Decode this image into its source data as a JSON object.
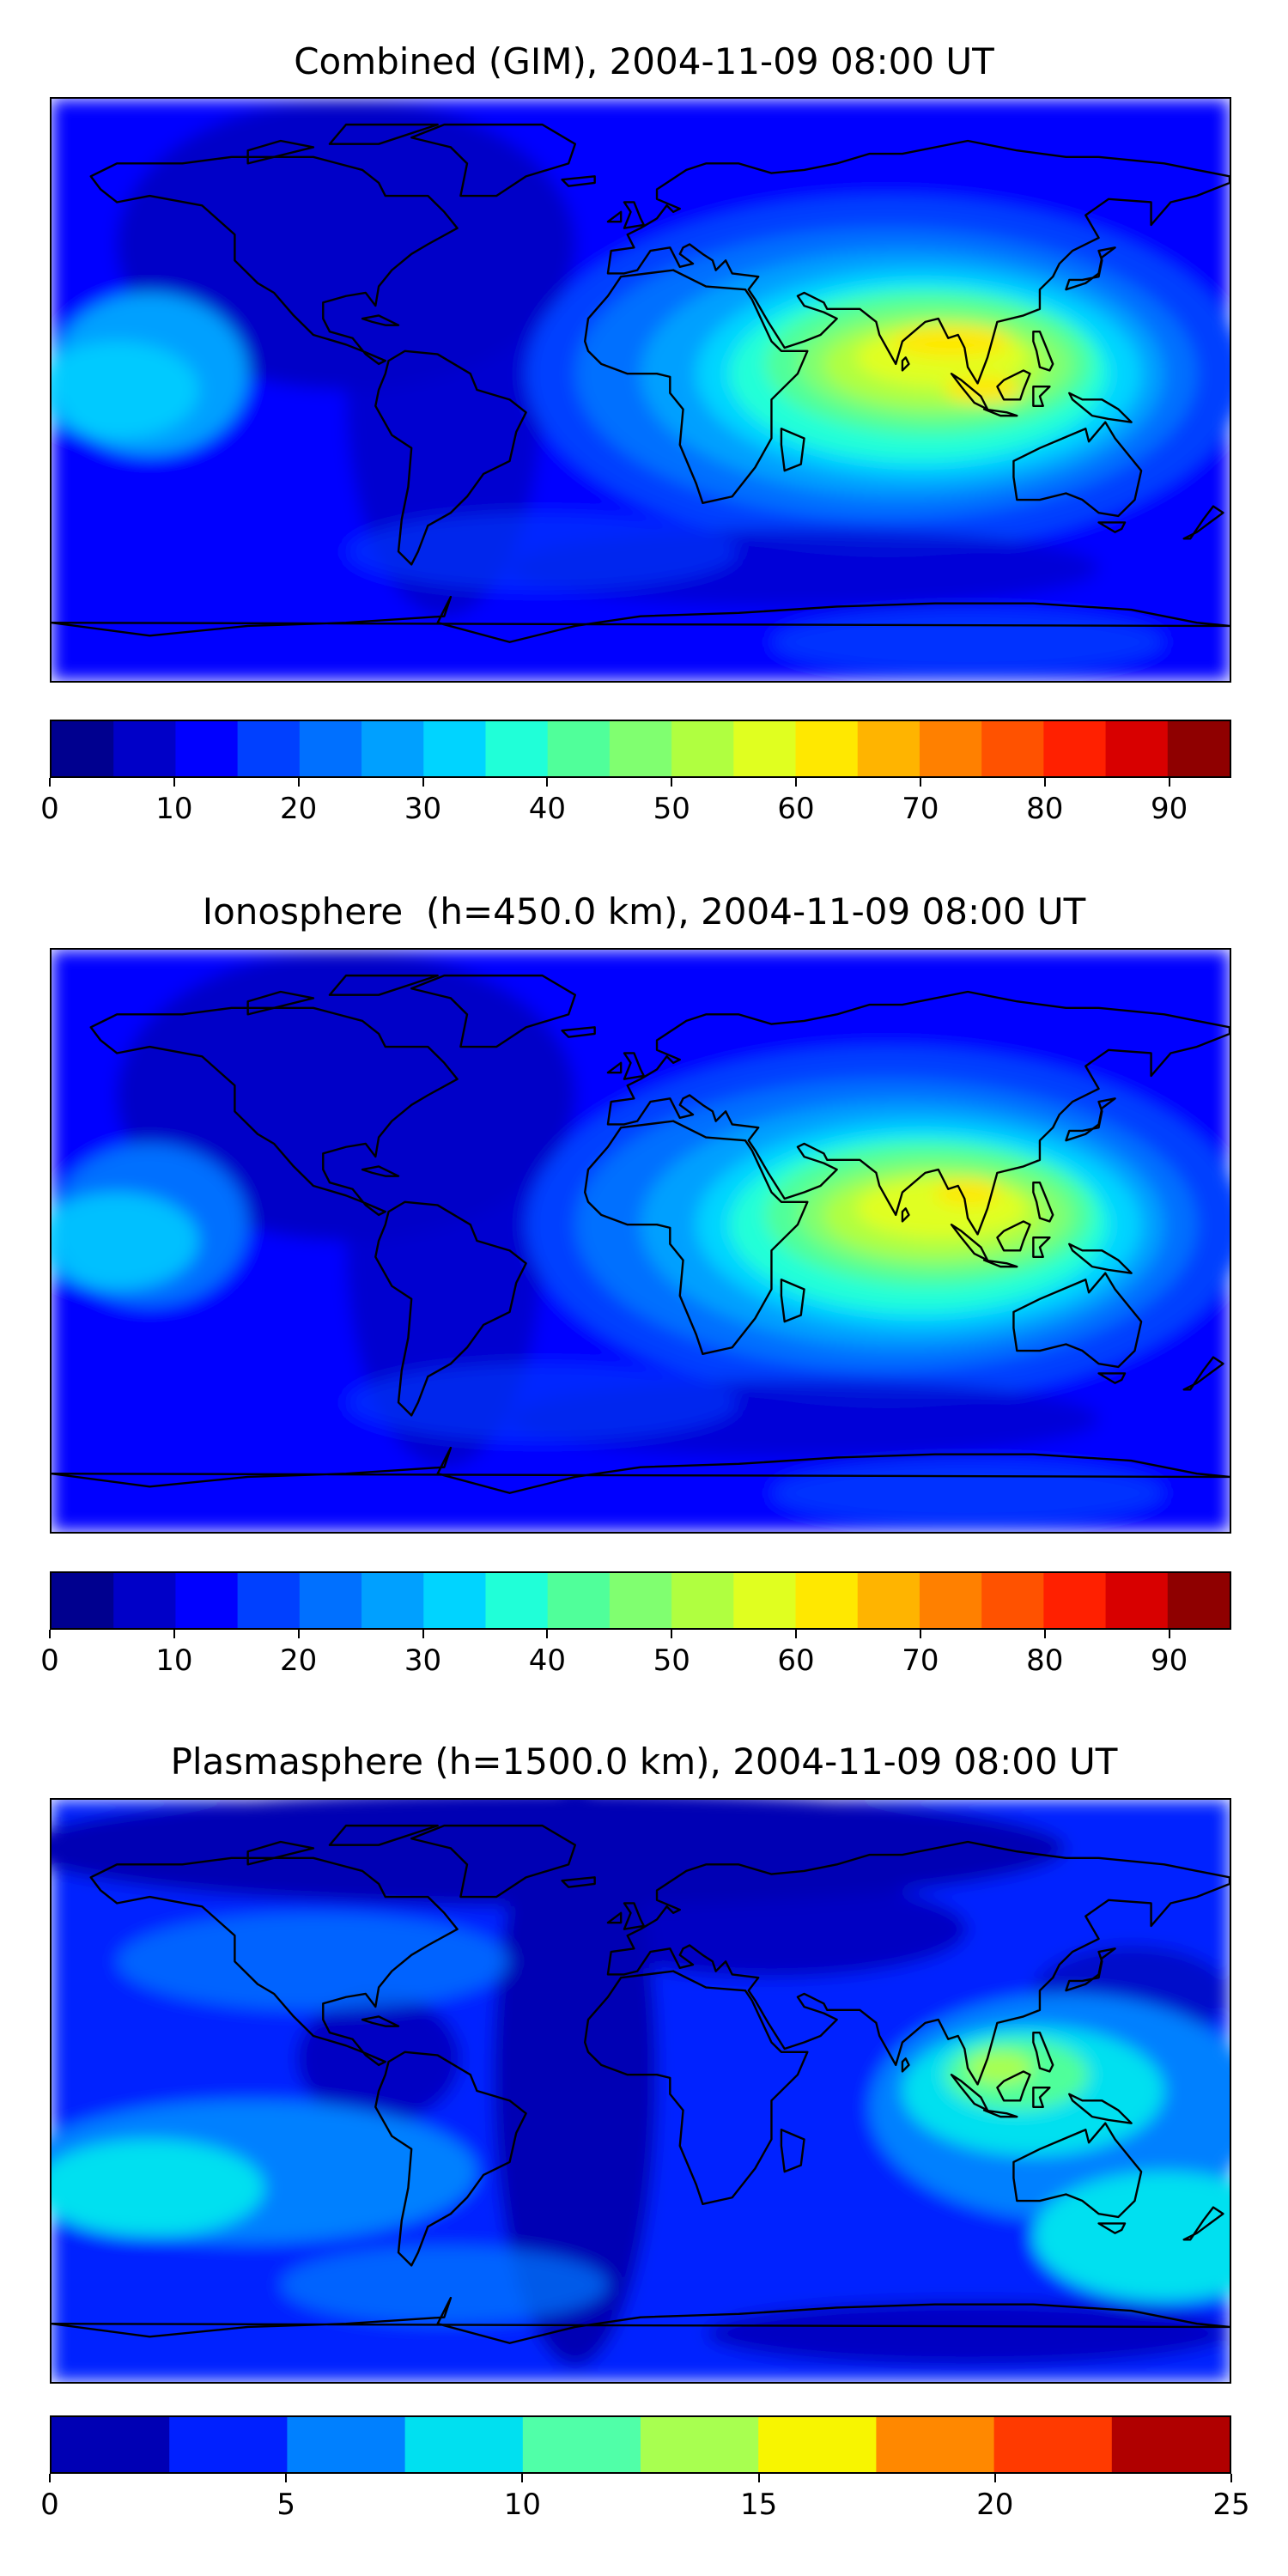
{
  "panels": [
    {
      "title": "Combined (GIM), 2004-11-09 08:00 UT",
      "colorbar": {
        "min": 0,
        "max": 95,
        "step": 5,
        "ticks": [
          "0",
          "10",
          "20",
          "30",
          "40",
          "50",
          "60",
          "70",
          "80",
          "90"
        ],
        "tick_values": [
          0,
          10,
          20,
          30,
          40,
          50,
          60,
          70,
          80,
          90
        ],
        "colors": [
          "#00008f",
          "#0000c8",
          "#0000ff",
          "#0040ff",
          "#0070ff",
          "#00a0ff",
          "#00d4ff",
          "#20ffd8",
          "#50ff9a",
          "#80ff70",
          "#b0ff40",
          "#e0ff20",
          "#ffe800",
          "#ffb400",
          "#ff8000",
          "#ff5200",
          "#ff2000",
          "#d80000",
          "#8f0000"
        ]
      },
      "map_style": "combined"
    },
    {
      "title": "Ionosphere  (h=450.0 km), 2004-11-09 08:00 UT",
      "colorbar": {
        "min": 0,
        "max": 95,
        "step": 5,
        "ticks": [
          "0",
          "10",
          "20",
          "30",
          "40",
          "50",
          "60",
          "70",
          "80",
          "90"
        ],
        "tick_values": [
          0,
          10,
          20,
          30,
          40,
          50,
          60,
          70,
          80,
          90
        ],
        "colors": [
          "#00008f",
          "#0000c8",
          "#0000ff",
          "#0040ff",
          "#0070ff",
          "#00a0ff",
          "#00d4ff",
          "#20ffd8",
          "#50ff9a",
          "#80ff70",
          "#b0ff40",
          "#e0ff20",
          "#ffe800",
          "#ffb400",
          "#ff8000",
          "#ff5200",
          "#ff2000",
          "#d80000",
          "#8f0000"
        ]
      },
      "map_style": "ionosphere"
    },
    {
      "title": "Plasmasphere (h=1500.0 km), 2004-11-09 08:00 UT",
      "colorbar": {
        "min": 0,
        "max": 25,
        "step": 2.5,
        "ticks": [
          "0",
          "5",
          "10",
          "15",
          "20",
          "25"
        ],
        "tick_values": [
          0,
          5,
          10,
          15,
          20,
          25
        ],
        "colors": [
          "#0000b4",
          "#0020ff",
          "#0080ff",
          "#00e0f0",
          "#50ffa8",
          "#a8ff50",
          "#f8f500",
          "#ff8800",
          "#ff3a00",
          "#b00000"
        ]
      },
      "map_style": "plasmasphere"
    }
  ]
}
